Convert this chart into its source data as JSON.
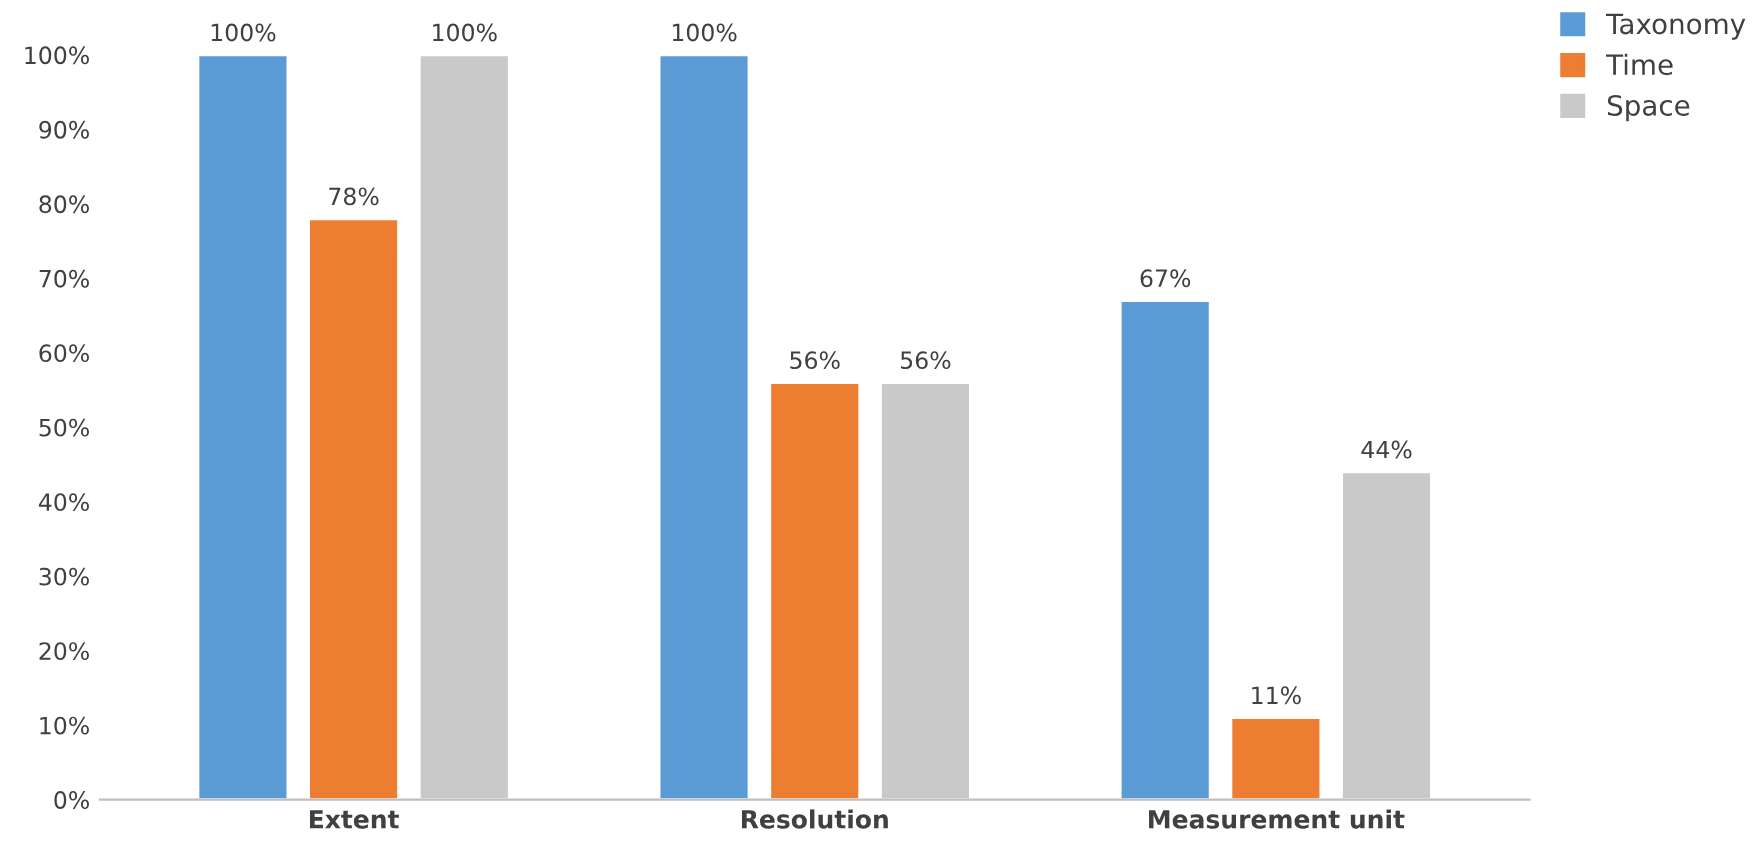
{
  "chart_data": {
    "type": "bar",
    "categories": [
      "Extent",
      "Resolution",
      "Measurement unit"
    ],
    "series": [
      {
        "name": "Taxonomy",
        "color": "#5b9bd5",
        "values": [
          100,
          100,
          67
        ],
        "value_labels": [
          "100%",
          "100%",
          "67%"
        ]
      },
      {
        "name": "Time",
        "color": "#ed7d31",
        "values": [
          78,
          56,
          11
        ],
        "value_labels": [
          "78%",
          "56%",
          "11%"
        ]
      },
      {
        "name": "Space",
        "color": "#c9c9c9",
        "values": [
          100,
          56,
          44
        ],
        "value_labels": [
          "100%",
          "56%",
          "44%"
        ]
      }
    ],
    "ylim": [
      0,
      100
    ],
    "yticks": [
      {
        "value": 0,
        "label": "0%"
      },
      {
        "value": 10,
        "label": "10%"
      },
      {
        "value": 20,
        "label": "20%"
      },
      {
        "value": 30,
        "label": "30%"
      },
      {
        "value": 40,
        "label": "40%"
      },
      {
        "value": 50,
        "label": "50%"
      },
      {
        "value": 60,
        "label": "60%"
      },
      {
        "value": 70,
        "label": "70%"
      },
      {
        "value": 80,
        "label": "80%"
      },
      {
        "value": 90,
        "label": "90%"
      },
      {
        "value": 100,
        "label": "100%"
      }
    ],
    "grid": false,
    "legend": "top right"
  }
}
